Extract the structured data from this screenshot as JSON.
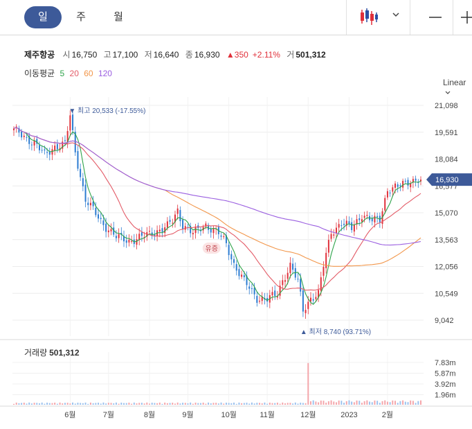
{
  "periods": [
    "일",
    "주",
    "월"
  ],
  "stock": {
    "name": "제주항공",
    "open_label": "시",
    "open": "16,750",
    "high_label": "고",
    "high": "17,100",
    "low_label": "저",
    "low": "16,640",
    "close_label": "종",
    "close": "16,930",
    "change": "▲350",
    "change_pct": "+2.11%",
    "volume_label": "거",
    "volume": "501,312"
  },
  "moving_average": {
    "label": "이동평균",
    "periods": [
      {
        "label": "5",
        "color": "#2ea34a"
      },
      {
        "label": "20",
        "color": "#e35a66"
      },
      {
        "label": "60",
        "color": "#f2964a"
      },
      {
        "label": "120",
        "color": "#9a5ee0"
      }
    ]
  },
  "scale_label": "Linear",
  "colors": {
    "up": "#e0303a",
    "down": "#2b7bd1",
    "accent": "#3d5a99"
  },
  "icons": [
    "candlestick-icon",
    "chevron-down-icon",
    "minus-icon",
    "plus-icon"
  ],
  "chart_data": {
    "type": "candlestick",
    "x_ticks": [
      "6월",
      "7월",
      "8월",
      "9월",
      "10월",
      "11월",
      "12월",
      "2023",
      "2월"
    ],
    "y_ticks": [
      "21,098",
      "19,591",
      "18,084",
      "16,577",
      "15,070",
      "13,563",
      "12,056",
      "10,549",
      "9,042"
    ],
    "ylim": [
      9042,
      21098
    ],
    "last_price_label": "16,930",
    "annotations": {
      "high": "▼ 최고 20,533 (-17.55%)",
      "low": "▲ 최저 8,740 (93.71%)",
      "event": "유증"
    },
    "anchors": [
      [
        0,
        19700
      ],
      [
        8,
        19000
      ],
      [
        12,
        18300
      ],
      [
        16,
        18800
      ],
      [
        20,
        18900
      ],
      [
        22,
        20500
      ],
      [
        24,
        18500
      ],
      [
        28,
        15800
      ],
      [
        34,
        14600
      ],
      [
        40,
        13700
      ],
      [
        45,
        13500
      ],
      [
        50,
        13700
      ],
      [
        55,
        14000
      ],
      [
        60,
        14300
      ],
      [
        62,
        14600
      ],
      [
        64,
        15200
      ],
      [
        66,
        14400
      ],
      [
        70,
        13900
      ],
      [
        75,
        14400
      ],
      [
        80,
        13900
      ],
      [
        83,
        13300
      ],
      [
        86,
        12200
      ],
      [
        90,
        11200
      ],
      [
        95,
        10300
      ],
      [
        99,
        10200
      ],
      [
        103,
        10500
      ],
      [
        105,
        11300
      ],
      [
        108,
        12100
      ],
      [
        111,
        11200
      ],
      [
        113,
        9600
      ],
      [
        116,
        10300
      ],
      [
        119,
        10500
      ],
      [
        121,
        12100
      ],
      [
        124,
        14000
      ],
      [
        128,
        14500
      ],
      [
        132,
        14200
      ],
      [
        136,
        15000
      ],
      [
        140,
        14600
      ],
      [
        143,
        14700
      ],
      [
        146,
        16400
      ],
      [
        150,
        16500
      ],
      [
        155,
        16900
      ],
      [
        159,
        16930
      ]
    ],
    "ma_labels": [
      "5",
      "20",
      "60",
      "120"
    ],
    "volume": {
      "label": "거래량",
      "value": "501,312",
      "y_ticks": [
        "7.83m",
        "5.87m",
        "3.92m",
        "1.96m"
      ]
    }
  }
}
